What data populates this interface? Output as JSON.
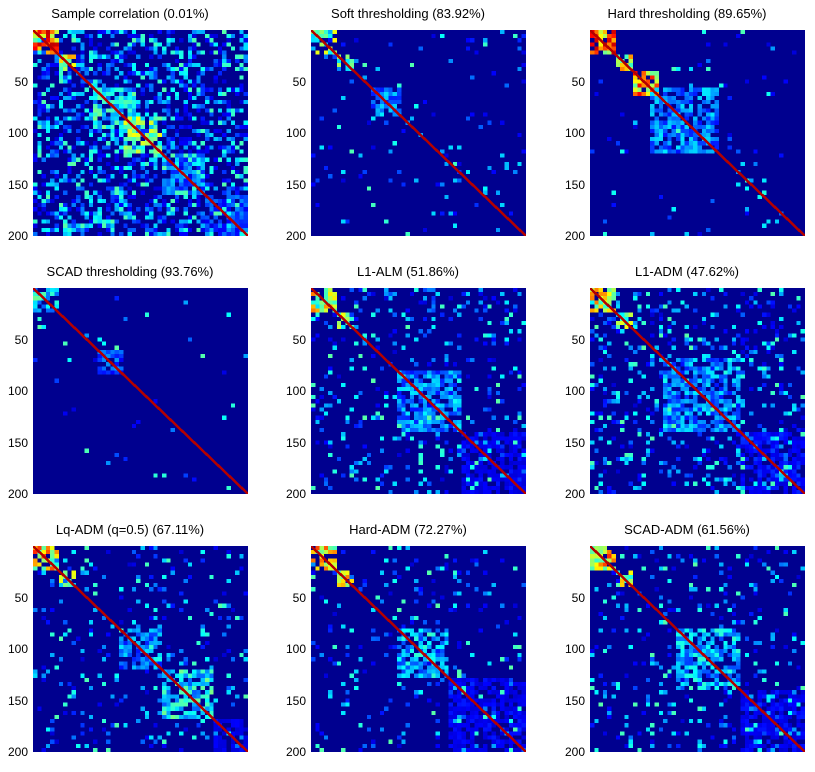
{
  "chart_data": [
    {
      "type": "heatmap",
      "title": "Sample correlation (0.01%)",
      "yticks": [
        50,
        100,
        150,
        200
      ],
      "ylim": [
        0,
        200
      ],
      "xlim": [
        0,
        200
      ],
      "sparsity_percent": 0.01,
      "blocks": [
        [
          1,
          25,
          0.85
        ],
        [
          25,
          40,
          0.7
        ],
        [
          55,
          95,
          0.45
        ],
        [
          85,
          120,
          0.55
        ],
        [
          120,
          160,
          0.35
        ],
        [
          160,
          200,
          0.3
        ]
      ],
      "background_level": 0.28
    },
    {
      "type": "heatmap",
      "title": "Soft thresholding (83.92%)",
      "yticks": [
        50,
        100,
        150,
        200
      ],
      "ylim": [
        0,
        200
      ],
      "xlim": [
        0,
        200
      ],
      "sparsity_percent": 83.92,
      "blocks": [
        [
          1,
          25,
          0.55
        ],
        [
          25,
          40,
          0.5
        ],
        [
          55,
          85,
          0.35
        ]
      ],
      "background_level": 0.03
    },
    {
      "type": "heatmap",
      "title": "Hard thresholding (89.65%)",
      "yticks": [
        50,
        100,
        150,
        200
      ],
      "ylim": [
        0,
        200
      ],
      "xlim": [
        0,
        200
      ],
      "sparsity_percent": 89.65,
      "blocks": [
        [
          1,
          25,
          0.8
        ],
        [
          25,
          40,
          0.7
        ],
        [
          40,
          65,
          0.75
        ],
        [
          55,
          120,
          0.35
        ]
      ],
      "background_level": 0.02
    },
    {
      "type": "heatmap",
      "title": "SCAD thresholding (93.76%)",
      "yticks": [
        50,
        100,
        150,
        200
      ],
      "ylim": [
        0,
        200
      ],
      "xlim": [
        0,
        200
      ],
      "sparsity_percent": 93.76,
      "blocks": [
        [
          1,
          25,
          0.45
        ],
        [
          60,
          85,
          0.3
        ]
      ],
      "background_level": 0.01
    },
    {
      "type": "heatmap",
      "title": "L1-ALM (51.86%)",
      "yticks": [
        50,
        100,
        150,
        200
      ],
      "ylim": [
        0,
        200
      ],
      "xlim": [
        0,
        200
      ],
      "sparsity_percent": 51.86,
      "blocks": [
        [
          1,
          25,
          0.65
        ],
        [
          25,
          40,
          0.55
        ],
        [
          80,
          140,
          0.35
        ],
        [
          140,
          200,
          0.2
        ]
      ],
      "background_level": 0.1
    },
    {
      "type": "heatmap",
      "title": "L1-ADM (47.62%)",
      "yticks": [
        50,
        100,
        150,
        200
      ],
      "ylim": [
        0,
        200
      ],
      "xlim": [
        0,
        200
      ],
      "sparsity_percent": 47.62,
      "blocks": [
        [
          1,
          25,
          0.65
        ],
        [
          25,
          40,
          0.55
        ],
        [
          70,
          140,
          0.35
        ],
        [
          140,
          200,
          0.22
        ]
      ],
      "background_level": 0.12
    },
    {
      "type": "heatmap",
      "title": "Lq-ADM (q=0.5) (67.11%)",
      "yticks": [
        50,
        100,
        150,
        200
      ],
      "ylim": [
        0,
        200
      ],
      "xlim": [
        0,
        200
      ],
      "sparsity_percent": 67.11,
      "blocks": [
        [
          1,
          25,
          0.7
        ],
        [
          25,
          40,
          0.6
        ],
        [
          80,
          120,
          0.35
        ],
        [
          120,
          170,
          0.45
        ],
        [
          170,
          200,
          0.2
        ]
      ],
      "background_level": 0.07
    },
    {
      "type": "heatmap",
      "title": "Hard-ADM (72.27%)",
      "yticks": [
        50,
        100,
        150,
        200
      ],
      "ylim": [
        0,
        200
      ],
      "xlim": [
        0,
        200
      ],
      "sparsity_percent": 72.27,
      "blocks": [
        [
          1,
          25,
          0.7
        ],
        [
          25,
          40,
          0.65
        ],
        [
          80,
          130,
          0.4
        ],
        [
          130,
          200,
          0.2
        ]
      ],
      "background_level": 0.06
    },
    {
      "type": "heatmap",
      "title": "SCAD-ADM (61.56%)",
      "yticks": [
        50,
        100,
        150,
        200
      ],
      "ylim": [
        0,
        200
      ],
      "xlim": [
        0,
        200
      ],
      "sparsity_percent": 61.56,
      "blocks": [
        [
          1,
          25,
          0.7
        ],
        [
          25,
          40,
          0.6
        ],
        [
          80,
          140,
          0.4
        ],
        [
          140,
          200,
          0.2
        ]
      ],
      "background_level": 0.08
    }
  ],
  "colormap": {
    "name": "jet",
    "background": "#00008f",
    "stops": [
      "#00008f",
      "#0000ff",
      "#00ffff",
      "#ffff00",
      "#ff0000",
      "#800000"
    ]
  }
}
